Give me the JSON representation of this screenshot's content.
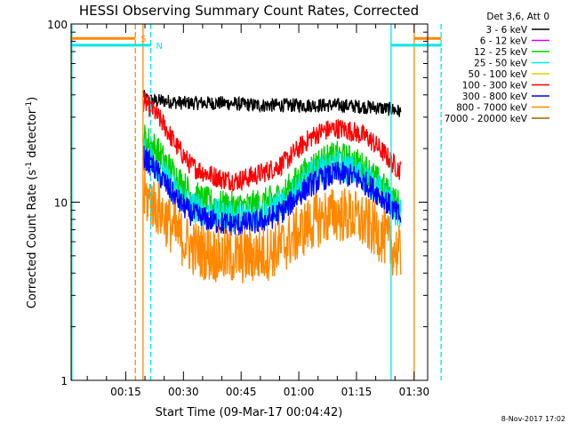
{
  "chart_data": {
    "type": "line",
    "title": "HESSI Observing Summary Count Rates, Corrected",
    "xlabel": "Start Time (09-Mar-17 00:04:42)",
    "ylabel_main": "Corrected Count Rate (s",
    "ylabel_sup": "-1",
    "ylabel_mid": " detector",
    "ylabel_sup2": "-1",
    "ylabel_end": ")",
    "y_scale": "log",
    "ylim": [
      1,
      100
    ],
    "xlim_minutes": [
      0.8,
      93.5
    ],
    "x_ticks": [
      {
        "minute": 15,
        "label": "00:15"
      },
      {
        "minute": 30,
        "label": "00:30"
      },
      {
        "minute": 45,
        "label": "00:45"
      },
      {
        "minute": 60,
        "label": "01:00"
      },
      {
        "minute": 75,
        "label": "01:15"
      },
      {
        "minute": 90,
        "label": "01:30"
      }
    ],
    "y_ticks": [
      {
        "value": 1,
        "label": "1"
      },
      {
        "value": 10,
        "label": "10"
      },
      {
        "value": 100,
        "label": "100"
      }
    ],
    "date_stamp": "8-Nov-2017 17:02",
    "legend": {
      "title": "Det 3,6, Att 0",
      "position": "top-right",
      "entries": [
        {
          "label": "3 - 6 keV",
          "color": "#000000"
        },
        {
          "label": "6 - 12 keV",
          "color": "#e000e0"
        },
        {
          "label": "12 - 25 keV",
          "color": "#00d000"
        },
        {
          "label": "25 - 50 keV",
          "color": "#00e8e8"
        },
        {
          "label": "50 - 100 keV",
          "color": "#e8c800"
        },
        {
          "label": "100 - 300 keV",
          "color": "#ff0000"
        },
        {
          "label": "300 - 800 keV",
          "color": "#0000ff"
        },
        {
          "label": "800 - 7000 keV",
          "color": "#ff8800"
        },
        {
          "label": "7000 - 20000 keV",
          "color": "#a06000"
        }
      ]
    },
    "series": [
      {
        "name": "3 - 6 keV",
        "color": "#000000",
        "noise": 0.04,
        "x": [
          19.5,
          20,
          22,
          25,
          30,
          40,
          50,
          60,
          70,
          80,
          85,
          86.5
        ],
        "y": [
          41,
          38,
          37,
          37,
          36,
          36,
          35,
          35,
          35,
          34,
          33,
          32
        ]
      },
      {
        "name": "100 - 300 keV",
        "color": "#ff0000",
        "noise": 0.06,
        "x": [
          19.5,
          22,
          25,
          28,
          32,
          36,
          40,
          44,
          48,
          52,
          56,
          60,
          63,
          66,
          70,
          74,
          78,
          82,
          85,
          86.5
        ],
        "y": [
          37,
          33,
          27,
          21,
          16,
          14.5,
          13.5,
          13.2,
          14,
          15,
          16.5,
          20,
          23,
          25,
          26,
          25,
          23,
          19,
          16,
          15
        ]
      },
      {
        "name": "12 - 25 keV",
        "color": "#00d000",
        "noise": 0.09,
        "x": [
          19.5,
          22,
          25,
          28,
          32,
          36,
          40,
          44,
          48,
          52,
          56,
          60,
          63,
          66,
          70,
          74,
          78,
          82,
          85,
          86.5
        ],
        "y": [
          23,
          21,
          17,
          14,
          11,
          10,
          9.5,
          9.3,
          9.5,
          10,
          11,
          13.5,
          15.5,
          17,
          18,
          17,
          15,
          12,
          10,
          9.5
        ]
      },
      {
        "name": "25 - 50 keV",
        "color": "#00e8e8",
        "noise": 0.09,
        "x": [
          19.5,
          22,
          25,
          28,
          32,
          36,
          40,
          44,
          48,
          52,
          56,
          60,
          63,
          66,
          70,
          74,
          78,
          82,
          85,
          86.5
        ],
        "y": [
          19,
          17,
          14,
          11.5,
          9.5,
          8.8,
          8.4,
          8.2,
          8.4,
          8.8,
          9.8,
          12,
          14,
          15,
          16,
          15,
          13.5,
          11,
          9,
          8.5
        ]
      },
      {
        "name": "300 - 800 keV",
        "color": "#0000ff",
        "noise": 0.07,
        "x": [
          19.5,
          22,
          25,
          28,
          32,
          36,
          40,
          44,
          48,
          52,
          56,
          60,
          63,
          66,
          70,
          74,
          78,
          82,
          85,
          86.5
        ],
        "y": [
          18,
          16,
          13,
          10.5,
          8.6,
          8,
          7.6,
          7.5,
          7.6,
          8,
          9,
          11,
          12.5,
          13.5,
          14.5,
          14,
          12.5,
          10.5,
          8.8,
          8.2
        ]
      },
      {
        "name": "800 - 7000 keV",
        "color": "#ff8800",
        "noise": 0.16,
        "x": [
          19.5,
          22,
          25,
          28,
          32,
          36,
          40,
          44,
          48,
          52,
          56,
          60,
          63,
          66,
          70,
          74,
          78,
          82,
          85,
          86.5
        ],
        "y": [
          11,
          10,
          8.3,
          6.8,
          5.6,
          5.2,
          5,
          4.9,
          5,
          5.2,
          5.7,
          6.7,
          7.6,
          8.2,
          8.6,
          8.3,
          7.4,
          6.4,
          5.4,
          5
        ]
      }
    ],
    "vertical_markers": [
      {
        "minute": 1.0,
        "color": "#00e8e8",
        "style": "solid"
      },
      {
        "minute": 17.5,
        "color": "#ff8800",
        "style": "dashed"
      },
      {
        "minute": 19.5,
        "color": "#ff8800",
        "style": "solid"
      },
      {
        "minute": 21.5,
        "color": "#00e8e8",
        "style": "dashed"
      },
      {
        "minute": 84.0,
        "color": "#00e8e8",
        "style": "solid"
      },
      {
        "minute": 90.0,
        "color": "#ff8800",
        "style": "solid"
      },
      {
        "minute": 97.0,
        "color": "#00e8e8",
        "style": "dashed"
      }
    ],
    "top_bars": [
      {
        "from_minute": 1.0,
        "to_minute": 17.5,
        "value": 83,
        "color": "#ff8800",
        "flag": "S"
      },
      {
        "from_minute": 1.0,
        "to_minute": 21.5,
        "value": 76,
        "color": "#00e8e8",
        "flag": "N"
      },
      {
        "from_minute": 90.0,
        "to_minute": 97.0,
        "value": 83,
        "color": "#ff8800",
        "flag": ""
      },
      {
        "from_minute": 84.0,
        "to_minute": 97.0,
        "value": 76,
        "color": "#00e8e8",
        "flag": ""
      }
    ]
  }
}
